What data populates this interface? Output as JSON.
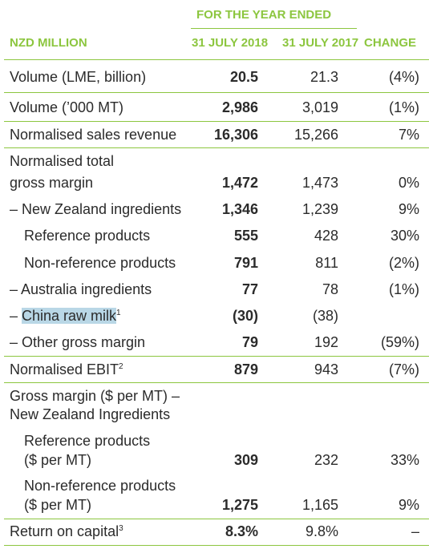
{
  "header": {
    "period_title": "FOR THE YEAR ENDED",
    "unit": "NZD MILLION",
    "col_2018": "31 JULY 2018",
    "col_2017": "31 JULY 2017",
    "col_change": "CHANGE"
  },
  "rows": [
    {
      "label": "Volume (LME, billion)",
      "v2018": "20.5",
      "v2017": "21.3",
      "change": "(4%)"
    },
    {
      "label": "Volume (’000 MT)",
      "v2018": "2,986",
      "v2017": "3,019",
      "change": "(1%)"
    },
    {
      "label": "Normalised sales revenue",
      "v2018": "16,306",
      "v2017": "15,266",
      "change": "7%"
    },
    {
      "label_line1": "Normalised total",
      "label_line2": "gross margin",
      "v2018": "1,472",
      "v2017": "1,473",
      "change": "0%"
    },
    {
      "label": "– New Zealand ingredients",
      "v2018": "1,346",
      "v2017": "1,239",
      "change": "9%"
    },
    {
      "label": "Reference products",
      "v2018": "555",
      "v2017": "428",
      "change": "30%"
    },
    {
      "label": "Non-reference products",
      "v2018": "791",
      "v2017": "811",
      "change": "(2%)"
    },
    {
      "label": "– Australia ingredients",
      "v2018": "77",
      "v2017": "78",
      "change": "(1%)"
    },
    {
      "label_prefix": "– ",
      "label_highlight": "China raw milk",
      "footnote": "1",
      "v2018": "(30)",
      "v2017": "(38)",
      "change": ""
    },
    {
      "label": "– Other gross margin",
      "v2018": "79",
      "v2017": "192",
      "change": "(59%)"
    },
    {
      "label": "Normalised EBIT",
      "footnote": "2",
      "v2018": "879",
      "v2017": "943",
      "change": "(7%)"
    },
    {
      "label_line1": "Gross margin ($ per MT) –",
      "label_line2": "New Zealand Ingredients"
    },
    {
      "label_line1": "Reference products",
      "label_line2": "($ per MT)",
      "v2018": "309",
      "v2017": "232",
      "change": "33%"
    },
    {
      "label_line1": "Non-reference products",
      "label_line2": "($ per MT)",
      "v2018": "1,275",
      "v2017": "1,165",
      "change": "9%"
    },
    {
      "label": "Return on capital",
      "footnote": "3",
      "v2018": "8.3%",
      "v2017": "9.8%",
      "change": "–"
    }
  ],
  "colors": {
    "accent": "#8cc63f",
    "text": "#2b2b2b",
    "highlight": "#b9d7e6"
  }
}
